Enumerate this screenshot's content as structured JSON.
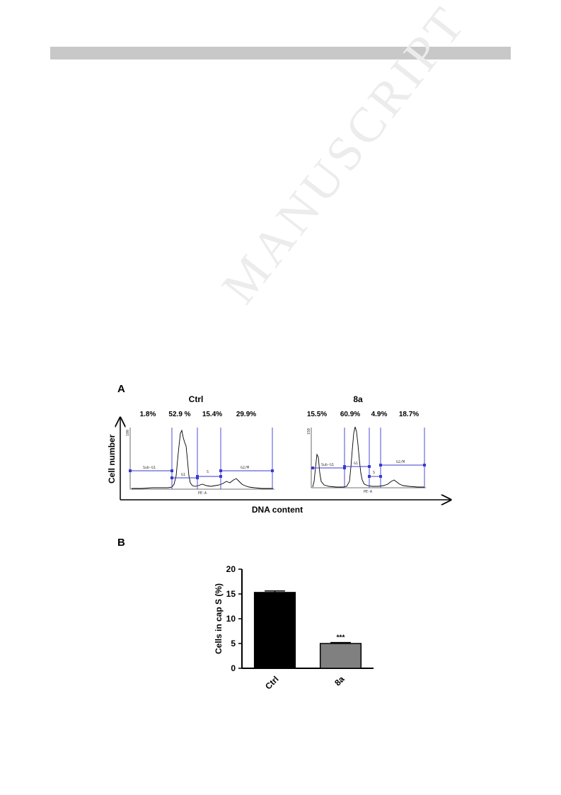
{
  "header_bar_color": "#c8c8c8",
  "watermark": "MANUSCRIPT",
  "panel_a": {
    "letter": "A",
    "y_label": "Cell number",
    "x_label": "DNA content",
    "histograms": [
      {
        "title": "Ctrl",
        "y_max_label": "100",
        "x_axis_label": "PE-A",
        "percentages": [
          "1.8%",
          "52.9 %",
          "15.4%",
          "29.9%"
        ],
        "gates": [
          "Sub-G1",
          "G1",
          "S",
          "G2/M"
        ]
      },
      {
        "title": "8a",
        "y_max_label": "150",
        "x_axis_label": "PE-A",
        "percentages": [
          "15.5%",
          "60.9%",
          "4.9%",
          "18.7%"
        ],
        "gates": [
          "Sub-G1",
          "G1",
          "S",
          "G2/M"
        ]
      }
    ]
  },
  "panel_b": {
    "letter": "B"
  },
  "chart_data": {
    "type": "bar",
    "categories": [
      "Ctrl",
      "8a"
    ],
    "values": [
      15.3,
      5.0
    ],
    "errors": [
      0.3,
      0.2
    ],
    "colors": [
      "#000000",
      "#808080"
    ],
    "ylabel": "Cells in cap S (%)",
    "xlabel": "",
    "ylim": [
      0,
      20
    ],
    "yticks": [
      "0",
      "5",
      "10",
      "15",
      "20"
    ],
    "annotations": [
      {
        "category": "8a",
        "text": "***"
      }
    ],
    "grid": false
  }
}
